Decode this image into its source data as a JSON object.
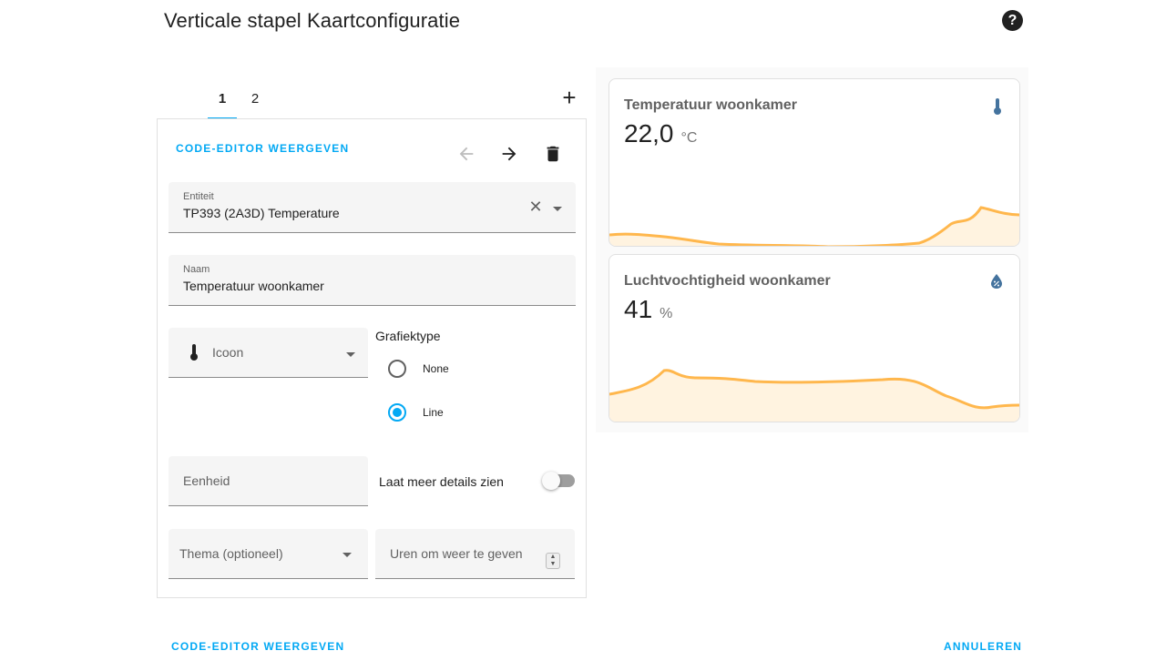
{
  "dialog": {
    "title": "Verticale stapel Kaartconfiguratie",
    "help_icon": "help-circle-icon"
  },
  "tabs": [
    {
      "label": "1",
      "active": true
    },
    {
      "label": "2",
      "active": false
    }
  ],
  "editor": {
    "code_editor_label": "CODE-EDITOR WEERGEVEN",
    "entity": {
      "label": "Entiteit",
      "value": "TP393 (2A3D) Temperature"
    },
    "name": {
      "label": "Naam",
      "value": "Temperatuur woonkamer"
    },
    "icon": {
      "placeholder": "Icoon",
      "icon": "thermometer-icon"
    },
    "graph_type": {
      "title": "Grafiektype",
      "options": [
        {
          "label": "None",
          "checked": false
        },
        {
          "label": "Line",
          "checked": true
        }
      ]
    },
    "unit": {
      "placeholder": "Eenheid"
    },
    "details_toggle": {
      "label": "Laat meer details zien",
      "on": false
    },
    "theme": {
      "placeholder": "Thema (optioneel)"
    },
    "hours": {
      "placeholder": "Uren om weer te geven"
    }
  },
  "preview": {
    "cards": [
      {
        "name": "Temperatuur woonkamer",
        "value": "22,0",
        "unit": "°C",
        "icon": "thermometer-icon"
      },
      {
        "name": "Luchtvochtigheid woonkamer",
        "value": "41",
        "unit": "%",
        "icon": "water-percent-icon"
      }
    ]
  },
  "footer": {
    "code_editor_label": "CODE-EDITOR WEERGEVEN",
    "cancel_label": "ANNULEREN"
  },
  "colors": {
    "accent": "#03a9f4",
    "graph_line": "#ffb74d",
    "graph_fill": "#fff3e0",
    "icon_blue": "#44739e"
  }
}
